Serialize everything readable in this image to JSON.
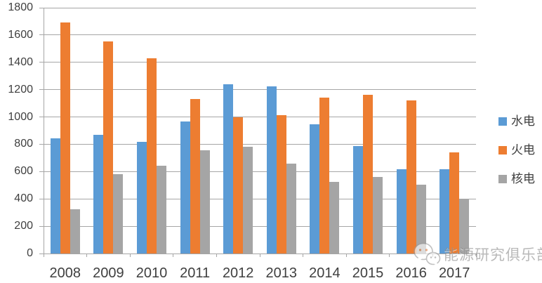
{
  "chart_data": {
    "type": "bar",
    "title": "",
    "xlabel": "",
    "ylabel": "",
    "categories": [
      "2008",
      "2009",
      "2010",
      "2011",
      "2012",
      "2013",
      "2014",
      "2015",
      "2016",
      "2017"
    ],
    "series": [
      {
        "name": "水电",
        "color": "#5b9bd5",
        "values": [
          845,
          868,
          819,
          965,
          1240,
          1222,
          944,
          789,
          617,
          618
        ]
      },
      {
        "name": "火电",
        "color": "#ed7d31",
        "values": [
          1690,
          1552,
          1432,
          1130,
          1000,
          1015,
          1143,
          1162,
          1119,
          740
        ]
      },
      {
        "name": "核电",
        "color": "#a5a5a5",
        "values": [
          322,
          581,
          643,
          755,
          780,
          658,
          527,
          560,
          506,
          395
        ]
      }
    ],
    "ylim": [
      0,
      1800
    ],
    "yticks": [
      0,
      200,
      400,
      600,
      800,
      1000,
      1200,
      1400,
      1600,
      1800
    ],
    "grid": true,
    "legend_position": "right"
  },
  "colors": {
    "gridline": "#a6a6a6",
    "axis_text": "#3f3f3f",
    "background": "#ffffff"
  },
  "watermark": {
    "icon": "wechat-icon",
    "text": "能源研究俱乐部"
  }
}
